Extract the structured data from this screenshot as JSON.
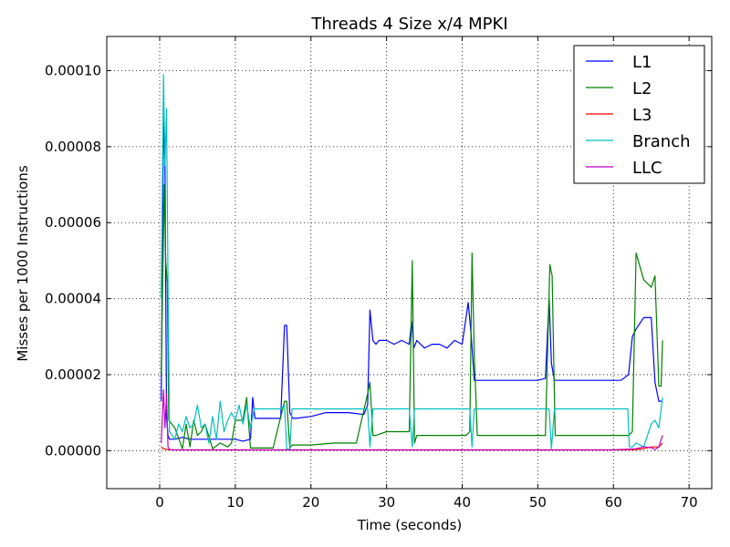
{
  "chart_data": {
    "type": "line",
    "title": "Threads 4 Size x/4 MPKI",
    "xlabel": "Time (seconds)",
    "ylabel": "Misses per 1000 Instructions",
    "xlim": [
      -7,
      73
    ],
    "ylim": [
      -1e-05,
      0.000109
    ],
    "xticks": [
      0,
      10,
      20,
      30,
      40,
      50,
      60,
      70
    ],
    "xtick_labels": [
      "0",
      "10",
      "20",
      "30",
      "40",
      "50",
      "60",
      "70"
    ],
    "yticks": [
      0,
      2e-05,
      4e-05,
      6e-05,
      8e-05,
      0.0001
    ],
    "ytick_labels": [
      "0.00000",
      "0.00002",
      "0.00004",
      "0.00006",
      "0.00008",
      "0.00010"
    ],
    "grid": true,
    "legend_position": "top-right",
    "series": [
      {
        "name": "L1",
        "color": "#0000ff",
        "x": [
          0.2,
          0.5,
          0.7,
          0.9,
          1.1,
          1.3,
          2.0,
          3.0,
          4.0,
          5.0,
          6.0,
          7.0,
          8.0,
          9.0,
          10.0,
          11.0,
          12.0,
          12.3,
          12.6,
          14,
          16,
          16.5,
          16.8,
          17.2,
          17.6,
          18,
          20,
          22,
          25,
          27,
          27.5,
          27.8,
          28.2,
          28.6,
          29,
          30,
          31,
          32,
          33,
          33.3,
          33.6,
          34,
          35,
          36,
          37,
          38,
          39,
          40,
          40.8,
          41.2,
          41.6,
          42,
          43,
          45,
          48,
          50,
          51,
          51.5,
          51.8,
          52.2,
          52.6,
          53,
          55,
          58,
          61,
          62,
          62.5,
          63,
          64,
          65,
          65.5,
          66,
          66.5
        ],
        "y": [
          1.3e-05,
          8.8e-05,
          7.5e-05,
          9e-06,
          4e-06,
          3e-06,
          3e-06,
          3.5e-06,
          3e-06,
          3e-06,
          3e-06,
          3e-06,
          3e-06,
          3e-06,
          3e-06,
          2.5e-06,
          3e-06,
          1.4e-05,
          8.5e-06,
          8.5e-06,
          8.5e-06,
          3.3e-05,
          3.3e-05,
          1e-05,
          8.5e-06,
          8.5e-06,
          9e-06,
          1e-05,
          1e-05,
          9.5e-06,
          1.2e-05,
          3.7e-05,
          2.9e-05,
          2.8e-05,
          2.9e-05,
          2.9e-05,
          2.8e-05,
          2.9e-05,
          2.8e-05,
          3.4e-05,
          2.7e-05,
          2.9e-05,
          2.7e-05,
          2.8e-05,
          2.8e-05,
          2.7e-05,
          2.9e-05,
          2.8e-05,
          3.9e-05,
          3e-05,
          1.85e-05,
          1.85e-05,
          1.85e-05,
          1.85e-05,
          1.85e-05,
          1.85e-05,
          1.9e-05,
          4e-05,
          2.3e-05,
          1.85e-05,
          1.85e-05,
          1.85e-05,
          1.85e-05,
          1.85e-05,
          1.85e-05,
          2e-05,
          3e-05,
          3.2e-05,
          3.5e-05,
          3.5e-05,
          1.8e-05,
          1.3e-05,
          1.3e-05
        ]
      },
      {
        "name": "L2",
        "color": "#008000",
        "x": [
          0.2,
          0.6,
          0.8,
          1.0,
          1.2,
          2,
          3,
          3.5,
          4,
          4.5,
          5,
          5.5,
          6,
          7,
          8,
          9,
          9.5,
          10,
          11,
          11.5,
          12,
          13,
          15,
          16.5,
          16.8,
          17.2,
          17.5,
          18,
          20,
          23,
          26,
          27.5,
          27.8,
          28.2,
          28.6,
          30,
          32,
          33,
          33.4,
          33.7,
          34,
          36,
          38,
          40.5,
          41,
          41.3,
          41.6,
          42,
          44,
          47,
          50,
          51,
          51.6,
          51.9,
          52.3,
          53,
          55,
          58,
          61,
          62,
          62.5,
          63,
          64,
          65,
          65.5,
          66,
          66.3,
          66.5
        ],
        "y": [
          2e-05,
          7e-05,
          5e-05,
          4.4e-05,
          8e-06,
          6e-06,
          5e-07,
          7e-06,
          1e-06,
          8e-06,
          4e-06,
          5e-06,
          7e-06,
          5e-07,
          2e-06,
          1e-06,
          2e-06,
          8e-06,
          8e-06,
          1.4e-05,
          7e-07,
          7e-07,
          7e-07,
          1.3e-05,
          1.3e-05,
          7e-07,
          1.5e-06,
          1.5e-06,
          1.5e-06,
          2e-06,
          2e-06,
          1.5e-05,
          1.8e-05,
          4e-06,
          4e-06,
          5e-06,
          5e-06,
          5e-06,
          5e-05,
          2e-06,
          4e-06,
          4e-06,
          4e-06,
          4e-06,
          5e-06,
          5.2e-05,
          2.5e-05,
          4e-06,
          4e-06,
          4e-06,
          4e-06,
          4e-06,
          4.9e-05,
          4.6e-05,
          4e-06,
          4e-06,
          4e-06,
          4e-06,
          4e-06,
          4e-06,
          5e-06,
          5.2e-05,
          4.5e-05,
          4.3e-05,
          4.6e-05,
          1.7e-05,
          1.7e-05,
          2.9e-05
        ]
      },
      {
        "name": "L3",
        "color": "#ff0000",
        "x": [
          0.2,
          0.5,
          1.0,
          2,
          10,
          20,
          30,
          40,
          50,
          60,
          63,
          64,
          65,
          66,
          66.5
        ],
        "y": [
          1e-06,
          5e-07,
          3e-07,
          2e-07,
          2e-07,
          2e-07,
          2e-07,
          2e-07,
          2e-07,
          2e-07,
          3e-07,
          5e-07,
          1e-06,
          1e-06,
          2e-06
        ]
      },
      {
        "name": "Branch",
        "color": "#00bfbf",
        "x": [
          0.2,
          0.5,
          0.7,
          0.9,
          1.1,
          1.3,
          2,
          2.5,
          3,
          3.5,
          4,
          4.5,
          5,
          5.5,
          6,
          6.5,
          7,
          7.5,
          8,
          8.5,
          9,
          9.5,
          10,
          10.5,
          11,
          11.5,
          12,
          12.5,
          14,
          16,
          16.5,
          16.8,
          17.2,
          17.5,
          20,
          25,
          27.5,
          27.8,
          28.2,
          30,
          33,
          33.4,
          33.7,
          34,
          38,
          40.5,
          41,
          41.3,
          41.6,
          42,
          45,
          50,
          51.5,
          51.8,
          52.2,
          55,
          60,
          61.9,
          62.1,
          62.5,
          63,
          64,
          65,
          65.5,
          66,
          66.5
        ],
        "y": [
          4e-05,
          9.9e-05,
          7.5e-05,
          9e-05,
          4.5e-05,
          5e-06,
          3e-06,
          7e-06,
          5e-06,
          9e-06,
          6e-06,
          7e-06,
          1.2e-05,
          6e-06,
          7e-06,
          2e-06,
          9e-06,
          3e-06,
          1.3e-05,
          5e-06,
          8e-06,
          1e-05,
          8e-06,
          1.2e-05,
          7e-06,
          1.2e-05,
          6e-06,
          1.1e-05,
          1.1e-05,
          1.1e-05,
          1.2e-05,
          5e-07,
          3e-07,
          1.1e-05,
          1.1e-05,
          1.1e-05,
          1.1e-05,
          1e-06,
          1.1e-05,
          1.1e-05,
          1.1e-05,
          1e-06,
          1.1e-05,
          1.1e-05,
          1.1e-05,
          1.1e-05,
          1.1e-05,
          1e-06,
          1.1e-05,
          1.1e-05,
          1.1e-05,
          1.1e-05,
          1.1e-05,
          5e-07,
          1.1e-05,
          1.1e-05,
          1.1e-05,
          1.1e-05,
          1e-06,
          1e-06,
          2e-06,
          1e-06,
          7e-06,
          8e-06,
          6e-06,
          1.4e-05
        ]
      },
      {
        "name": "LLC",
        "color": "#bf00bf",
        "x": [
          0.2,
          0.5,
          0.7,
          0.9,
          1.1,
          1.3,
          2,
          10,
          20,
          30,
          40,
          50,
          60,
          63,
          64,
          65,
          65.5,
          66,
          66.5
        ],
        "y": [
          2e-06,
          1.6e-05,
          6e-06,
          1.5e-05,
          1e-06,
          3e-07,
          2e-07,
          2e-07,
          2e-07,
          2e-07,
          2e-07,
          2e-07,
          2e-07,
          5e-07,
          1e-06,
          8e-07,
          3e-07,
          1e-06,
          4e-06
        ]
      }
    ]
  }
}
